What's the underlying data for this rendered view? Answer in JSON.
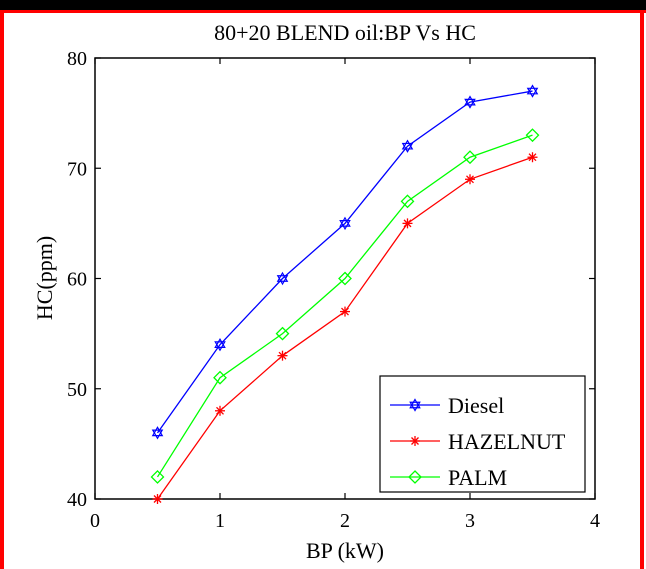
{
  "chart_data": {
    "type": "line",
    "title": "80+20 BLEND oil:BP Vs HC",
    "xlabel": "BP (kW)",
    "ylabel": "HC(ppm)",
    "xlim": [
      0,
      4
    ],
    "ylim": [
      40,
      80
    ],
    "xticks": [
      0,
      1,
      2,
      3,
      4
    ],
    "yticks": [
      40,
      50,
      60,
      70,
      80
    ],
    "grid": false,
    "legend_position": "bottom-right",
    "x": [
      0.5,
      1,
      1.5,
      2,
      2.5,
      3,
      3.5
    ],
    "series": [
      {
        "name": "Diesel",
        "color": "#0000ff",
        "marker": "hexagram",
        "values": [
          46,
          54,
          60,
          65,
          72,
          76,
          77
        ]
      },
      {
        "name": "HAZELNUT",
        "color": "#ff0000",
        "marker": "asterisk",
        "values": [
          40,
          48,
          53,
          57,
          65,
          69,
          71
        ]
      },
      {
        "name": "PALM",
        "color": "#00ff00",
        "marker": "diamond",
        "values": [
          42,
          51,
          55,
          60,
          67,
          71,
          73
        ]
      }
    ]
  },
  "page": {
    "border_color": "#ff0000",
    "top_bar_color": "#000000"
  }
}
